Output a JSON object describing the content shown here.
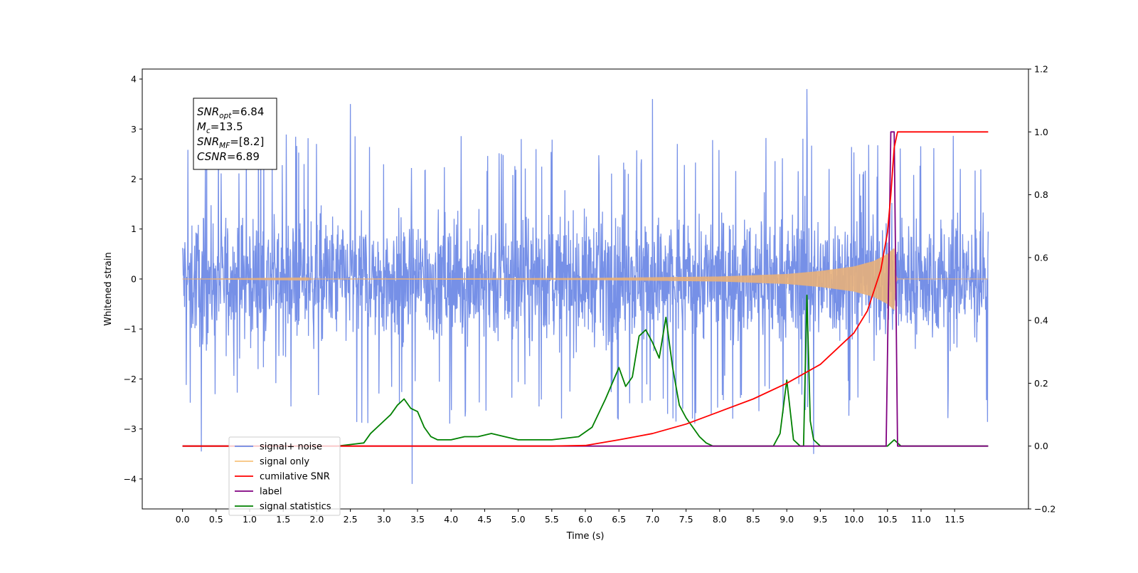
{
  "chart_data": {
    "type": "line",
    "title": "",
    "xlabel": "Time (s)",
    "ylabel": "Whitened strain",
    "xlim": [
      -0.6,
      12.6
    ],
    "ylim": [
      -4.6,
      4.2
    ],
    "y2lim": [
      -0.2,
      1.2
    ],
    "x_ticks": [
      0.0,
      0.5,
      1.0,
      1.5,
      2.0,
      2.5,
      3.0,
      3.5,
      4.0,
      4.5,
      5.0,
      5.5,
      6.0,
      6.5,
      7.0,
      7.5,
      8.0,
      8.5,
      9.0,
      9.5,
      10.0,
      10.5,
      11.0,
      11.5
    ],
    "x_tick_labels": [
      "0.0",
      "0.5",
      "1.0",
      "1.5",
      "2.0",
      "2.5",
      "3.0",
      "3.5",
      "4.0",
      "4.5",
      "5.0",
      "5.5",
      "6.0",
      "6.5",
      "7.0",
      "7.5",
      "8.0",
      "8.5",
      "9.0",
      "9.5",
      "10.0",
      "10.5",
      "11.0",
      "11.5"
    ],
    "y_ticks": [
      -4,
      -3,
      -2,
      -1,
      0,
      1,
      2,
      3,
      4
    ],
    "y_tick_labels": [
      "−4",
      "−3",
      "−2",
      "−1",
      "0",
      "1",
      "2",
      "3",
      "4"
    ],
    "y2_ticks": [
      -0.2,
      0.0,
      0.2,
      0.4,
      0.6,
      0.8,
      1.0,
      1.2
    ],
    "y2_tick_labels": [
      "−0.2",
      "0.0",
      "0.2",
      "0.4",
      "0.6",
      "0.8",
      "1.0",
      "1.2"
    ],
    "grid": false,
    "legend_position": "lower-left",
    "series": [
      {
        "name": "signal+ noise",
        "axis": "left",
        "color": "#6f8ae6",
        "style": "dense noise, amplitude approx ±2 with spikes to ±3.8",
        "x": [
          0.0,
          12.0
        ],
        "y_envelope_low": [
          -2.1,
          -2.1
        ],
        "y_envelope_high": [
          2.1,
          2.1
        ],
        "spikes": [
          [
            0.28,
            -3.45
          ],
          [
            2.5,
            3.5
          ],
          [
            3.42,
            -4.1
          ],
          [
            7.0,
            3.6
          ],
          [
            9.3,
            3.8
          ],
          [
            9.4,
            -3.5
          ]
        ]
      },
      {
        "name": "signal only",
        "axis": "left",
        "color": "#e8b07a",
        "x": [
          0.0,
          6.0,
          8.0,
          9.0,
          9.5,
          10.0,
          10.3,
          10.5,
          10.6,
          10.62,
          10.65,
          12.0
        ],
        "amplitude": [
          0.0,
          0.02,
          0.05,
          0.1,
          0.16,
          0.25,
          0.36,
          0.5,
          0.62,
          0.1,
          0.0,
          0.0
        ]
      },
      {
        "name": "cumilative SNR",
        "axis": "right",
        "color": "#ff0000",
        "x": [
          0.0,
          5.5,
          6.0,
          6.5,
          7.0,
          7.5,
          8.0,
          8.5,
          9.0,
          9.5,
          10.0,
          10.2,
          10.4,
          10.5,
          10.55,
          10.6,
          10.65,
          12.0
        ],
        "y": [
          0.0,
          0.0,
          0.002,
          0.02,
          0.04,
          0.07,
          0.11,
          0.15,
          0.2,
          0.26,
          0.36,
          0.43,
          0.56,
          0.68,
          0.8,
          0.95,
          1.0,
          1.0
        ]
      },
      {
        "name": "label",
        "axis": "right",
        "color": "#800080",
        "x": [
          0.0,
          10.48,
          10.55,
          10.6,
          10.65,
          10.7,
          12.0
        ],
        "y": [
          0.0,
          0.0,
          1.0,
          1.0,
          0.0,
          0.0,
          0.0
        ]
      },
      {
        "name": "signal statistics",
        "axis": "right",
        "color": "#008000",
        "x": [
          0.0,
          2.3,
          2.5,
          2.7,
          2.8,
          3.0,
          3.1,
          3.2,
          3.3,
          3.4,
          3.5,
          3.6,
          3.7,
          3.8,
          3.9,
          4.0,
          4.2,
          4.4,
          4.6,
          4.8,
          5.0,
          5.5,
          5.9,
          6.1,
          6.3,
          6.5,
          6.6,
          6.7,
          6.8,
          6.9,
          7.0,
          7.1,
          7.2,
          7.3,
          7.4,
          7.5,
          7.6,
          7.7,
          7.8,
          7.9,
          8.0,
          8.8,
          8.9,
          9.0,
          9.1,
          9.2,
          9.25,
          9.3,
          9.35,
          9.4,
          9.5,
          9.7,
          10.0,
          10.5,
          10.6,
          10.7,
          12.0
        ],
        "y": [
          0.0,
          0.0,
          0.005,
          0.01,
          0.04,
          0.08,
          0.1,
          0.13,
          0.15,
          0.12,
          0.11,
          0.06,
          0.03,
          0.02,
          0.02,
          0.02,
          0.03,
          0.03,
          0.04,
          0.03,
          0.02,
          0.02,
          0.03,
          0.06,
          0.15,
          0.25,
          0.19,
          0.22,
          0.35,
          0.37,
          0.33,
          0.28,
          0.41,
          0.25,
          0.13,
          0.09,
          0.06,
          0.03,
          0.01,
          0.0,
          0.0,
          0.0,
          0.04,
          0.21,
          0.02,
          0.0,
          0.0,
          0.48,
          0.08,
          0.02,
          0.0,
          0.0,
          0.0,
          0.0,
          0.02,
          0.0,
          0.0
        ]
      }
    ],
    "legend": {
      "entries": [
        {
          "label": "signal+ noise",
          "color": "#6f8ae6"
        },
        {
          "label": "signal only",
          "color": "#f7c27c"
        },
        {
          "label": "cumilative SNR",
          "color": "#ff0000"
        },
        {
          "label": "label",
          "color": "#800080"
        },
        {
          "label": "signal statistics",
          "color": "#008000"
        }
      ]
    },
    "annotation": {
      "lines": [
        {
          "base": "SNR",
          "sub": "opt",
          "value": "=6.84"
        },
        {
          "base": "M",
          "sub": "c",
          "value": "=13.5"
        },
        {
          "base": "SNR",
          "sub": "MF",
          "value": "=[8.2]"
        },
        {
          "base": "CSNR",
          "sub": "",
          "value": "=6.89"
        }
      ]
    }
  }
}
